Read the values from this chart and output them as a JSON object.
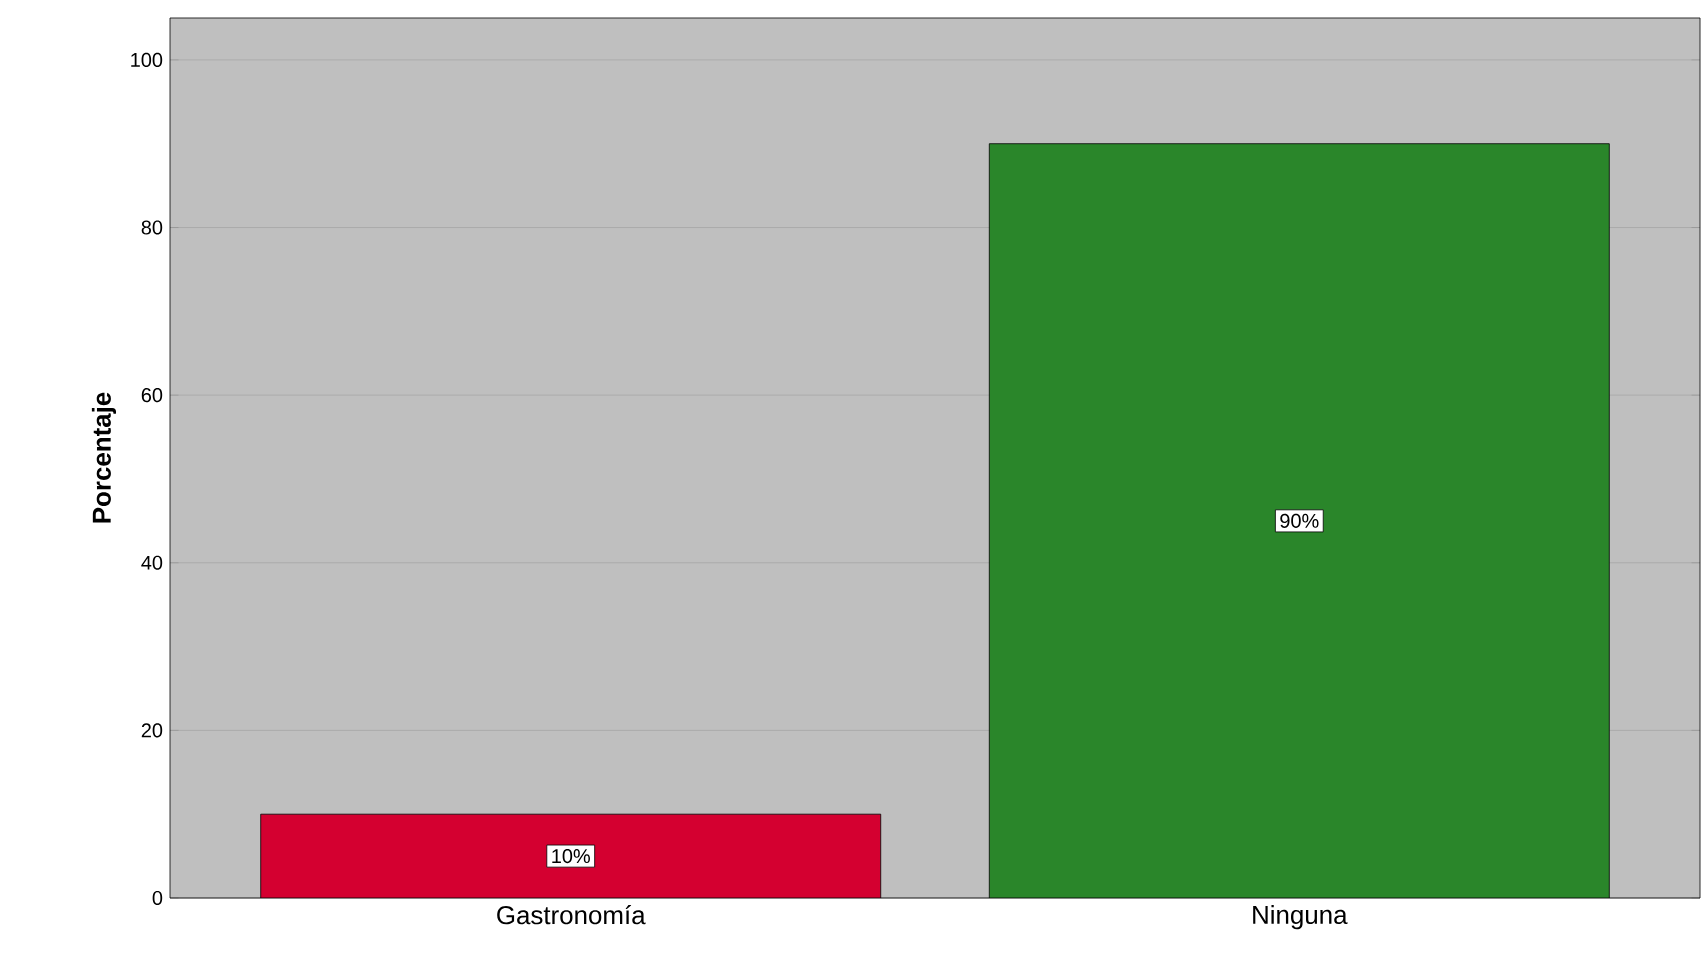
{
  "chart_data": {
    "type": "bar",
    "ylabel": "Porcentaje",
    "categories": [
      "Gastronomía",
      "Ninguna"
    ],
    "values": [
      10,
      90
    ],
    "colors": [
      "#d40030",
      "#2a862a"
    ],
    "value_labels": [
      "10%",
      "90%"
    ],
    "ylim": [
      0,
      105
    ],
    "yticks": [
      0,
      20,
      40,
      60,
      80,
      100
    ],
    "grid": "y"
  }
}
